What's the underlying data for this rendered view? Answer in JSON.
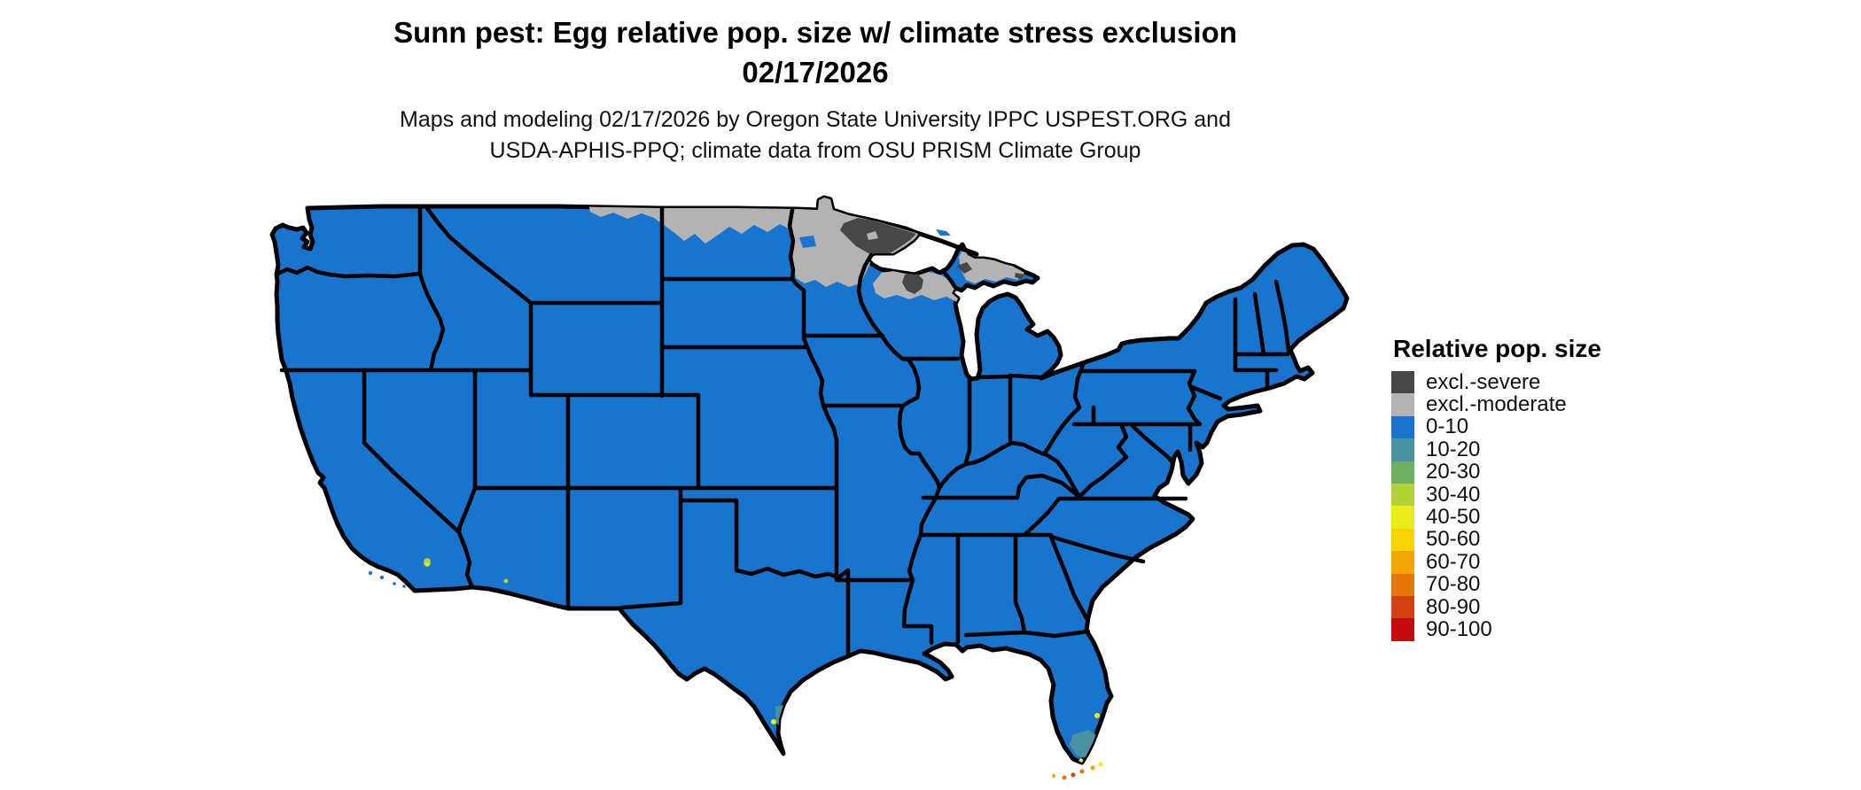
{
  "header": {
    "title": "Sunn pest: Egg relative pop. size w/ climate stress exclusion",
    "date": "02/17/2026"
  },
  "subtitle": {
    "line1": "Maps and modeling 02/17/2026 by Oregon State University IPPC USPEST.ORG and",
    "line2": "USDA-APHIS-PPQ; climate data from OSU PRISM Climate Group"
  },
  "legend": {
    "title": "Relative pop. size",
    "items": [
      {
        "label": "excl.-severe",
        "color": "#474747"
      },
      {
        "label": "excl.-moderate",
        "color": "#b3b3b3"
      },
      {
        "label": "0-10",
        "color": "#1874cd"
      },
      {
        "label": "10-20",
        "color": "#4a92a0"
      },
      {
        "label": "20-30",
        "color": "#6faf62"
      },
      {
        "label": "30-40",
        "color": "#b2d235"
      },
      {
        "label": "40-50",
        "color": "#e8eb1c"
      },
      {
        "label": "50-60",
        "color": "#f8d400"
      },
      {
        "label": "60-70",
        "color": "#f0a500"
      },
      {
        "label": "70-80",
        "color": "#e67508"
      },
      {
        "label": "80-90",
        "color": "#d54012"
      },
      {
        "label": "90-100",
        "color": "#c40b0e"
      }
    ]
  },
  "colors": {
    "land": "#1874cd",
    "border": "#000000",
    "excl_severe": "#474747",
    "excl_moderate": "#b3b3b3",
    "c10_20": "#4a92a0",
    "c20_30": "#6faf62",
    "c30_40": "#b2d235",
    "c40_50": "#e8eb1c",
    "c50_60": "#f8d400",
    "c60_70": "#f0a500",
    "c70_80": "#e67508",
    "c80_90": "#d54012",
    "c90_100": "#c40b0e"
  },
  "map": {
    "region": "Contiguous United States (state boundaries shown)",
    "dominant_class": "0-10",
    "exclusion_moderate_areas": "northeastern Montana edge, northern North Dakota, northern Minnesota, northern Wisconsin, Michigan Upper Peninsula",
    "exclusion_severe_areas": "northeastern Minnesota (arrowhead), patch of northern Wisconsin, small patches of upper Michigan",
    "elevated_population_areas": "southern Florida and Florida Keys (values up to 90-100), southern tip of Texas, Salton Sea area of California, southwestern Arizona"
  }
}
